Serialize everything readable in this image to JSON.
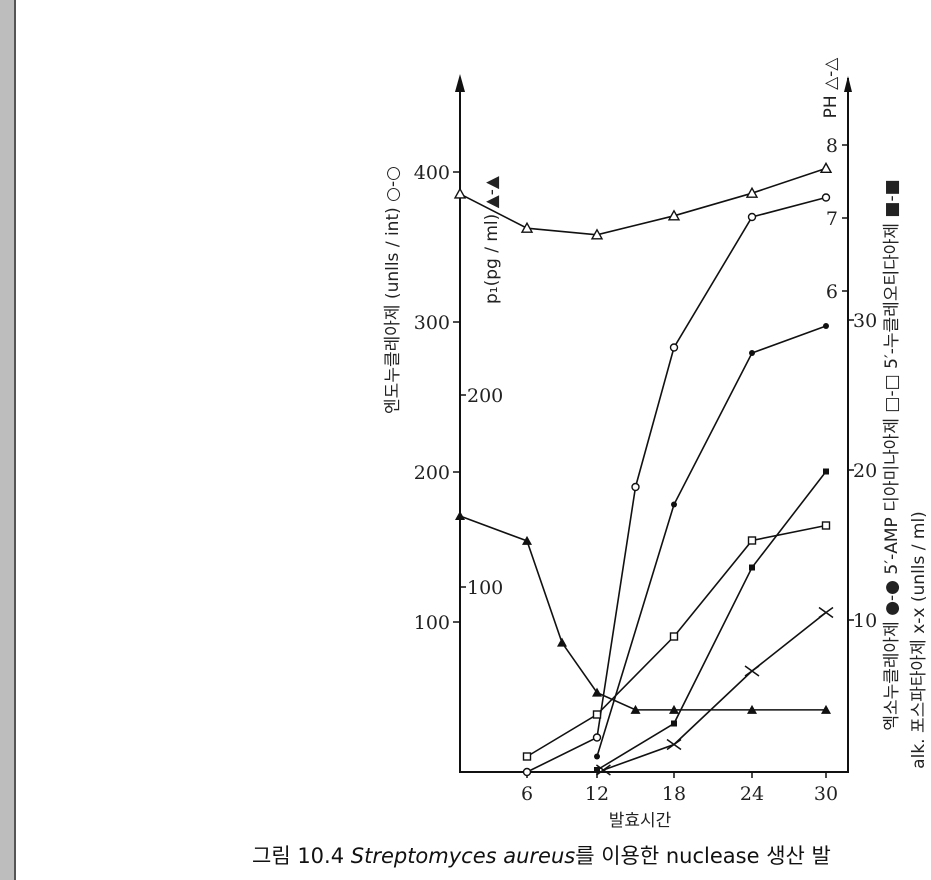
{
  "chart_data": {
    "type": "line",
    "title": "",
    "caption": {
      "prefix": "그림 10.4 ",
      "species": "Streptomyces aureus",
      "suffix": "를 이용한 nuclease 생산 발"
    },
    "xlabel": "발효시간",
    "x_ticks": [
      6,
      12,
      18,
      24,
      30
    ],
    "xlim": [
      0,
      30
    ],
    "axes": {
      "endo": {
        "label": "엔도누클레아제 (unlls / int) ○-○",
        "ticks": [
          100,
          200,
          300,
          400
        ],
        "ylim": [
          0,
          450
        ]
      },
      "p1": {
        "label": "p₁(pg / ml) ▲-▲",
        "ticks": [
          100,
          200
        ],
        "ylim": [
          0,
          200
        ]
      },
      "ph": {
        "label": "PH △-△",
        "ticks": [
          6,
          7,
          8
        ],
        "ylim": [
          6,
          8
        ]
      },
      "units": {
        "label1": "엑소누클레아제 ●-● 5′-AMP 디아미나아제 □-□ 5′-누클레오티다아제 ■-■",
        "label2": "alk. 포스파타아제 x-x (unlls / ml)",
        "ticks": [
          10,
          20,
          30
        ],
        "ylim": [
          0,
          30
        ]
      }
    },
    "series": [
      {
        "name": "엔도누클레아제",
        "axis": "endo",
        "marker": "open-circle",
        "x": [
          6,
          12,
          15,
          18,
          24,
          30
        ],
        "y": [
          0,
          23,
          190,
          283,
          370,
          383
        ]
      },
      {
        "name": "p1",
        "axis": "p1",
        "marker": "filled-triangle",
        "x": [
          0,
          6,
          9,
          12,
          15,
          18,
          24,
          30
        ],
        "y": [
          137,
          124,
          71,
          45,
          36,
          36,
          36,
          36
        ]
      },
      {
        "name": "pH",
        "axis": "ph",
        "marker": "open-triangle",
        "x": [
          0,
          6,
          12,
          18,
          24,
          30
        ],
        "y": [
          7.33,
          6.86,
          6.77,
          7.03,
          7.34,
          7.68
        ]
      },
      {
        "name": "엑소누클레아제",
        "axis": "units",
        "marker": "filled-circle",
        "x": [
          12,
          18,
          24,
          30
        ],
        "y": [
          0.9,
          17.7,
          27.8,
          29.6
        ]
      },
      {
        "name": "5'-AMP 디아미나아제",
        "axis": "units",
        "marker": "open-square",
        "x": [
          6,
          12,
          18,
          24,
          30
        ],
        "y": [
          0.9,
          3.7,
          8.9,
          15.3,
          16.3
        ]
      },
      {
        "name": "5'-누클레오티다아제",
        "axis": "units",
        "marker": "filled-square",
        "x": [
          12,
          18,
          24,
          30
        ],
        "y": [
          0,
          3.1,
          13.5,
          19.9
        ]
      },
      {
        "name": "alk. 포스파타아제",
        "axis": "units",
        "marker": "cross",
        "x": [
          12.5,
          18,
          24,
          30
        ],
        "y": [
          0,
          1.7,
          6.6,
          10.5
        ]
      }
    ]
  }
}
